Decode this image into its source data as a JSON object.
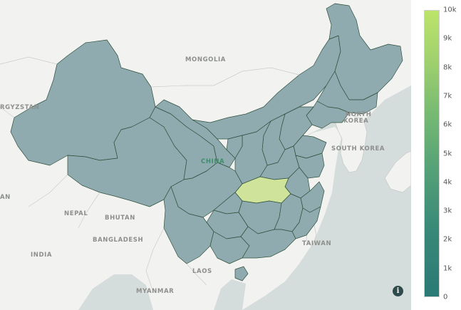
{
  "map": {
    "labels": {
      "mongolia": "MONGOLIA",
      "kyrgyzstan": "RGYZSTAN",
      "north_korea_1": "NORTH",
      "north_korea_2": "KOREA",
      "south_korea": "SOUTH KOREA",
      "china": "CHINA",
      "nepal": "NEPAL",
      "bhutan": "BHUTAN",
      "bangladesh": "BANGLADESH",
      "india": "INDIA",
      "taiwan": "TAIWAN",
      "laos": "LAOS",
      "myanmar": "MYANMAR",
      "edge_an": "AN"
    },
    "colors": {
      "ocean": "#d5dcdc",
      "land": "#f2f3f0",
      "region_low": "#8fabb0",
      "region_high": "#cfe39a",
      "border": "#2f4f3c",
      "hubei": "#cfe39a"
    },
    "highlighted_region": "Hubei",
    "info_icon": "info-icon",
    "info_glyph": "i"
  },
  "colorbar": {
    "ticks": [
      "10k",
      "9k",
      "8k",
      "7k",
      "6k",
      "5k",
      "4k",
      "3k",
      "2k",
      "1k",
      "0"
    ],
    "min": 0,
    "max": 10000,
    "colors": [
      "#2a7a76",
      "#56a277",
      "#9fd06e",
      "#bce46a"
    ]
  }
}
